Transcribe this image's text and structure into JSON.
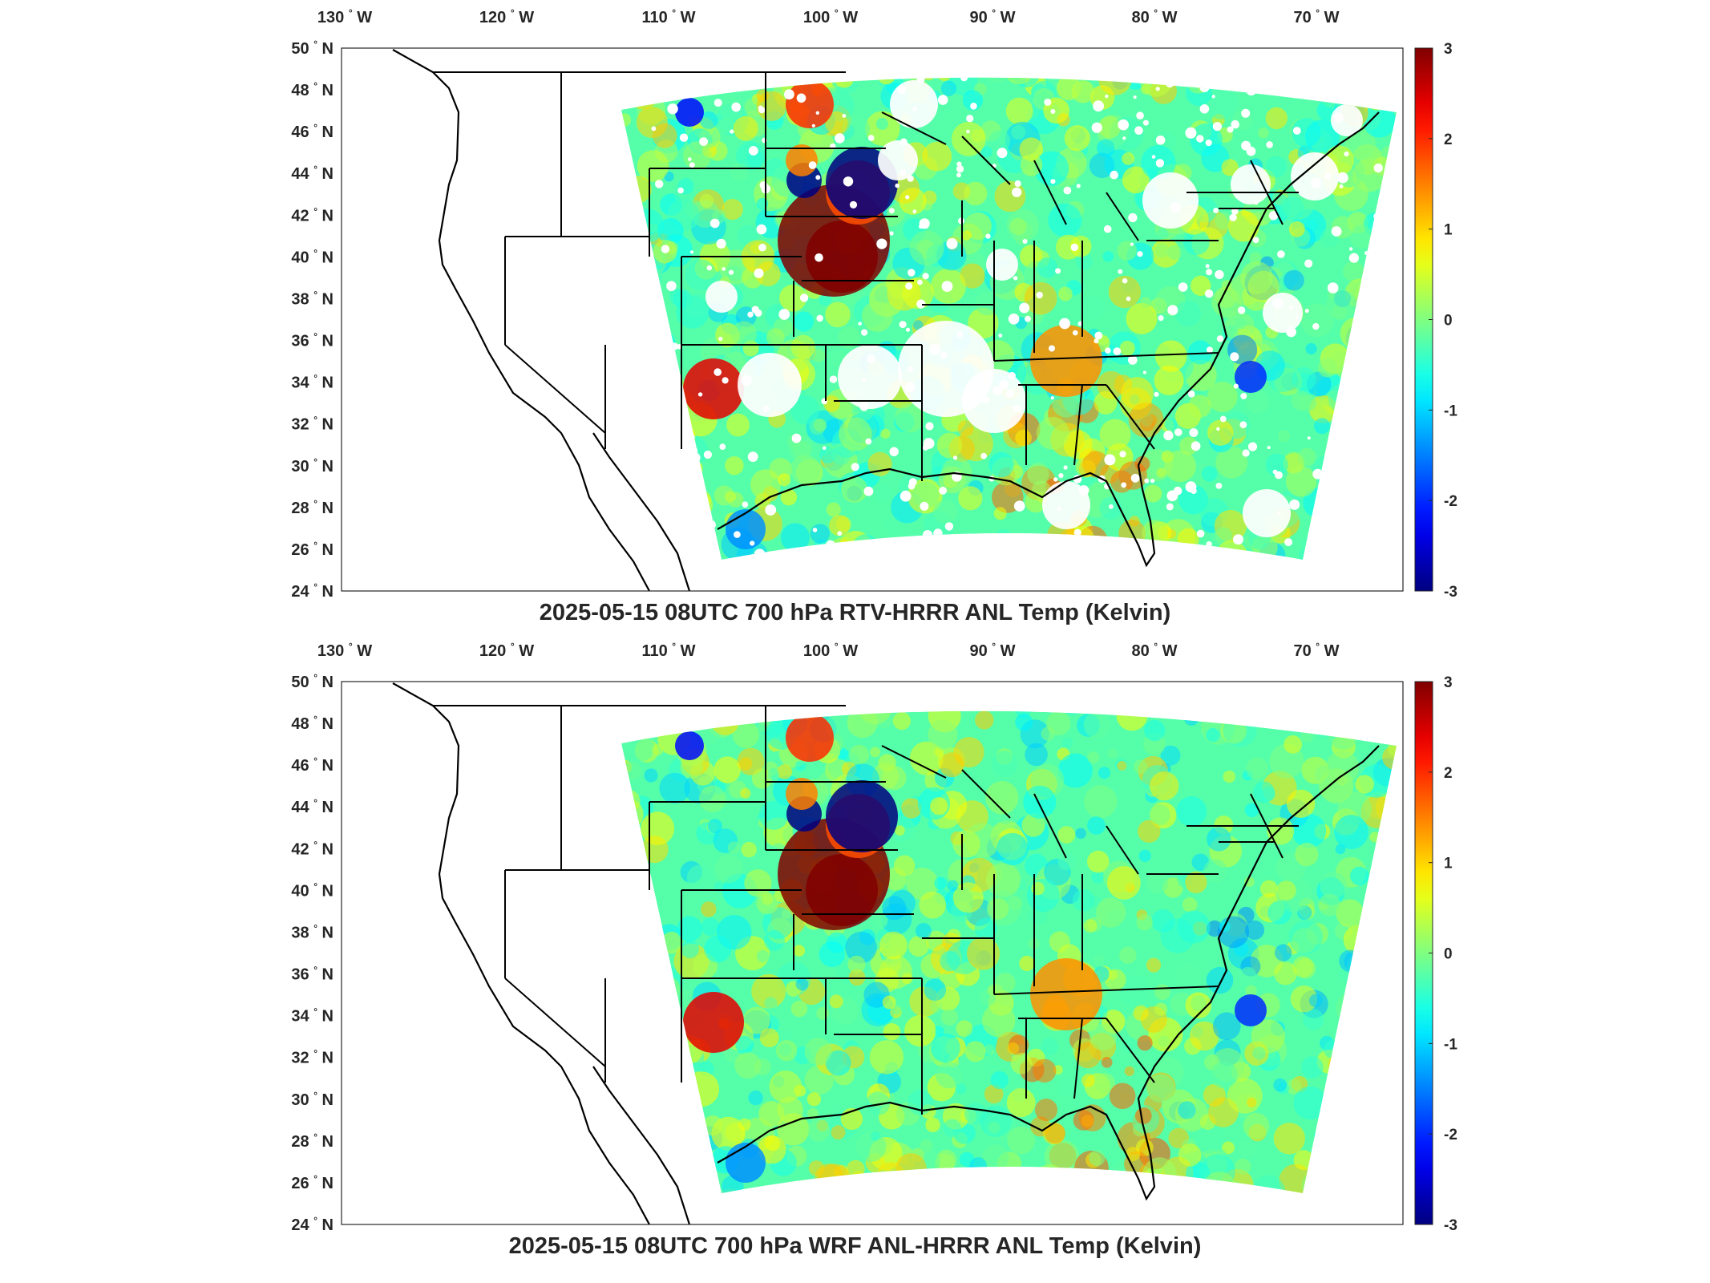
{
  "panels": [
    {
      "title": "2025-05-15 08UTC 700 hPa RTV-HRRR ANL Temp (Kelvin)",
      "field_variant": "rtv"
    },
    {
      "title": "2025-05-15 08UTC 700 hPa WRF ANL-HRRR ANL Temp (Kelvin)",
      "field_variant": "wrf"
    }
  ],
  "lon_ticks": [
    {
      "value": 130,
      "label": "130",
      "hemi": "W"
    },
    {
      "value": 120,
      "label": "120",
      "hemi": "W"
    },
    {
      "value": 110,
      "label": "110",
      "hemi": "W"
    },
    {
      "value": 100,
      "label": "100",
      "hemi": "W"
    },
    {
      "value": 90,
      "label": "90",
      "hemi": "W"
    },
    {
      "value": 80,
      "label": "80",
      "hemi": "W"
    },
    {
      "value": 70,
      "label": "70",
      "hemi": "W"
    }
  ],
  "lat_ticks": [
    {
      "value": 50,
      "label": "50",
      "hemi": "N"
    },
    {
      "value": 48,
      "label": "48",
      "hemi": "N"
    },
    {
      "value": 46,
      "label": "46",
      "hemi": "N"
    },
    {
      "value": 44,
      "label": "44",
      "hemi": "N"
    },
    {
      "value": 42,
      "label": "42",
      "hemi": "N"
    },
    {
      "value": 40,
      "label": "40",
      "hemi": "N"
    },
    {
      "value": 38,
      "label": "38",
      "hemi": "N"
    },
    {
      "value": 36,
      "label": "36",
      "hemi": "N"
    },
    {
      "value": 34,
      "label": "34",
      "hemi": "N"
    },
    {
      "value": 32,
      "label": "32",
      "hemi": "N"
    },
    {
      "value": 30,
      "label": "30",
      "hemi": "N"
    },
    {
      "value": 28,
      "label": "28",
      "hemi": "N"
    },
    {
      "value": 26,
      "label": "26",
      "hemi": "N"
    },
    {
      "value": 24,
      "label": "24",
      "hemi": "N"
    }
  ],
  "colorbar": {
    "min": -3,
    "max": 3,
    "ticks": [
      "3",
      "2",
      "1",
      "0",
      "-1",
      "-2",
      "-3"
    ],
    "colormap": "jet"
  },
  "colors": {
    "axis": "#262626",
    "map_lines": "#000000"
  }
}
